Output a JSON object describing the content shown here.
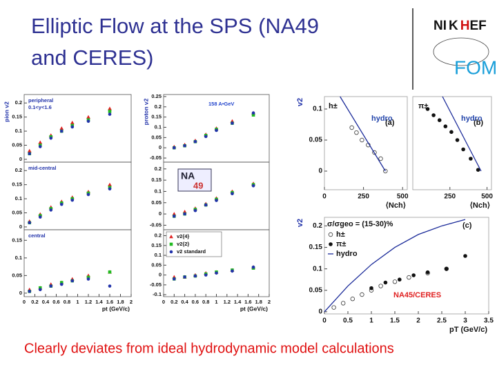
{
  "slide_title": [
    "Elliptic Flow at the SPS (NA49",
    "and CERES)"
  ],
  "footer": "Clearly deviates from ideal hydrodynamic model calculations",
  "logo": {
    "nikhef": [
      "NI",
      "K",
      "H",
      "EF"
    ],
    "fom": "FOM"
  },
  "na49_logo": [
    "NA",
    "49"
  ],
  "chart_data": [
    {
      "type": "scatter",
      "ylabel": "pion v2",
      "annotations": [
        "peripheral",
        "0.1<y<1.6"
      ],
      "xlim": [
        0,
        2
      ],
      "ylim": [
        -0.01,
        0.23
      ],
      "yticks": [
        0,
        0.05,
        0.1,
        0.15,
        0.2
      ],
      "x": [
        0.1,
        0.3,
        0.5,
        0.7,
        0.9,
        1.2,
        1.6
      ],
      "series": [
        {
          "color": "#e02020",
          "marker": "triangle",
          "values": [
            0.03,
            0.06,
            0.085,
            0.11,
            0.13,
            0.15,
            0.18
          ]
        },
        {
          "color": "#22bb22",
          "marker": "square",
          "values": [
            0.02,
            0.05,
            0.08,
            0.1,
            0.12,
            0.14,
            0.17
          ]
        },
        {
          "color": "#2233aa",
          "marker": "circle",
          "values": [
            0.02,
            0.045,
            0.075,
            0.1,
            0.115,
            0.135,
            0.16
          ]
        }
      ]
    },
    {
      "type": "scatter",
      "ylabel": "proton v2",
      "annotations": [
        "158 A•GeV"
      ],
      "xlim": [
        0,
        2
      ],
      "ylim": [
        -0.07,
        0.26
      ],
      "yticks": [
        -0.05,
        0,
        0.05,
        0.1,
        0.15,
        0.2,
        0.25
      ],
      "x": [
        0.2,
        0.4,
        0.6,
        0.8,
        1.0,
        1.3,
        1.7
      ],
      "series": [
        {
          "color": "#e02020",
          "marker": "triangle",
          "values": [
            0.005,
            0.015,
            0.035,
            0.065,
            0.095,
            0.13,
            0.17
          ]
        },
        {
          "color": "#22bb22",
          "marker": "square",
          "values": [
            0,
            0.01,
            0.03,
            0.06,
            0.09,
            0.12,
            0.16
          ]
        },
        {
          "color": "#2233aa",
          "marker": "circle",
          "values": [
            0,
            0.01,
            0.03,
            0.055,
            0.085,
            0.12,
            0.17
          ]
        }
      ]
    },
    {
      "type": "scatter",
      "annotations": [
        "mid-central"
      ],
      "xlim": [
        0,
        2
      ],
      "ylim": [
        -0.01,
        0.23
      ],
      "yticks": [
        0,
        0.05,
        0.1,
        0.15,
        0.2
      ],
      "x": [
        0.1,
        0.3,
        0.5,
        0.7,
        0.9,
        1.2,
        1.6
      ],
      "series": [
        {
          "color": "#e02020",
          "marker": "triangle",
          "values": [
            0.02,
            0.045,
            0.07,
            0.09,
            0.105,
            0.125,
            0.15
          ]
        },
        {
          "color": "#22bb22",
          "marker": "square",
          "values": [
            0.015,
            0.04,
            0.065,
            0.085,
            0.1,
            0.12,
            0.14
          ]
        },
        {
          "color": "#2233aa",
          "marker": "circle",
          "values": [
            0.015,
            0.035,
            0.06,
            0.08,
            0.095,
            0.115,
            0.135
          ]
        }
      ]
    },
    {
      "type": "scatter",
      "xlim": [
        0,
        2
      ],
      "ylim": [
        -0.07,
        0.23
      ],
      "yticks": [
        -0.05,
        0,
        0.05,
        0.1,
        0.15,
        0.2
      ],
      "x": [
        0.2,
        0.4,
        0.6,
        0.8,
        1.0,
        1.3,
        1.7
      ],
      "series": [
        {
          "color": "#e02020",
          "marker": "triangle",
          "values": [
            0,
            0.01,
            0.025,
            0.045,
            0.07,
            0.1,
            0.135
          ]
        },
        {
          "color": "#22bb22",
          "marker": "square",
          "values": [
            -0.01,
            0,
            0.02,
            0.04,
            0.065,
            0.095,
            0.13
          ]
        },
        {
          "color": "#2233aa",
          "marker": "circle",
          "values": [
            -0.01,
            0,
            0.015,
            0.04,
            0.06,
            0.09,
            0.125
          ]
        }
      ]
    },
    {
      "type": "scatter",
      "annotations": [
        "central"
      ],
      "xlabel": "pt (GeV/c)",
      "xlim": [
        0,
        2
      ],
      "ylim": [
        -0.01,
        0.18
      ],
      "yticks": [
        0,
        0.05,
        0.1,
        0.15
      ],
      "xticks": [
        0,
        0.2,
        0.4,
        0.6,
        0.8,
        1,
        1.2,
        1.4,
        1.6,
        1.8,
        2
      ],
      "x": [
        0.1,
        0.3,
        0.5,
        0.7,
        0.9,
        1.2,
        1.6
      ],
      "series": [
        {
          "color": "#e02020",
          "marker": "triangle",
          "values": [
            0.01,
            0.015,
            0.025,
            0.03,
            0.04,
            0.05,
            0.06
          ]
        },
        {
          "color": "#22bb22",
          "marker": "square",
          "values": [
            0.005,
            0.015,
            0.02,
            0.03,
            0.035,
            0.045,
            0.06
          ]
        },
        {
          "color": "#2233aa",
          "marker": "circle",
          "values": [
            0.005,
            0.01,
            0.02,
            0.025,
            0.035,
            0.04,
            0.02
          ]
        }
      ]
    },
    {
      "type": "scatter",
      "xlabel": "pt (GeV/c)",
      "legend": "top-left",
      "xlim": [
        0,
        2
      ],
      "ylim": [
        -0.11,
        0.23
      ],
      "yticks": [
        -0.1,
        -0.05,
        0,
        0.05,
        0.1,
        0.15,
        0.2
      ],
      "xticks": [
        0,
        0.2,
        0.4,
        0.6,
        0.8,
        1,
        1.2,
        1.4,
        1.6,
        1.8,
        2
      ],
      "x": [
        0.2,
        0.4,
        0.6,
        0.8,
        1.0,
        1.3,
        1.7
      ],
      "series": [
        {
          "name": "v2{4}",
          "color": "#e02020",
          "marker": "triangle",
          "values": [
            -0.01,
            -0.01,
            0,
            0.01,
            0.015,
            0.025,
            0.04
          ]
        },
        {
          "name": "v2{2}",
          "color": "#22bb22",
          "marker": "square",
          "values": [
            -0.02,
            -0.01,
            -0.005,
            0.005,
            0.015,
            0.025,
            0.035
          ]
        },
        {
          "name": "v2 standard",
          "color": "#2233aa",
          "marker": "circle",
          "values": [
            -0.02,
            -0.01,
            -0.005,
            0,
            0.01,
            0.02,
            0.04
          ]
        }
      ]
    },
    {
      "type": "scatter",
      "ylabel": "v2",
      "xlabel": "⟨Nch⟩",
      "annotations": [
        "h±",
        "(a)",
        "hydro"
      ],
      "xlim": [
        0,
        530
      ],
      "ylim": [
        -0.03,
        0.12
      ],
      "yticks": [
        0,
        0.05,
        0.1
      ],
      "xticks": [
        0,
        250,
        500
      ],
      "series": [
        {
          "color": "#333333",
          "marker": "open-circle",
          "x": [
            175,
            205,
            240,
            280,
            320,
            360,
            390
          ],
          "values": [
            0.07,
            0.062,
            0.05,
            0.042,
            0.03,
            0.02,
            0
          ]
        },
        {
          "color": "#1a2a99",
          "marker": "line",
          "x": [
            100,
            390
          ],
          "values": [
            0.12,
            0
          ]
        }
      ]
    },
    {
      "type": "scatter",
      "xlabel": "⟨Nch⟩",
      "annotations": [
        "π±",
        "(b)",
        "hydro"
      ],
      "xlim": [
        0,
        530
      ],
      "ylim": [
        -0.03,
        0.12
      ],
      "xticks": [
        250,
        500
      ],
      "series": [
        {
          "color": "#111111",
          "marker": "circle",
          "x": [
            100,
            140,
            180,
            220,
            260,
            300,
            340,
            390,
            440
          ],
          "values": [
            0.1,
            0.09,
            0.082,
            0.072,
            0.063,
            0.05,
            0.035,
            0.02,
            0.002
          ]
        },
        {
          "color": "#1a2a99",
          "marker": "line",
          "x": [
            200,
            460
          ],
          "values": [
            0.12,
            0
          ]
        }
      ]
    },
    {
      "type": "scatter",
      "ylabel": "v2",
      "xlabel": "pT (GeV/c)",
      "legend": "top-left",
      "legend_title": "σ/σgeo = (15-30)%",
      "annotations": [
        "(c)",
        "NA45/CERES"
      ],
      "xlim": [
        0,
        3.5
      ],
      "ylim": [
        -0.005,
        0.22
      ],
      "yticks": [
        0,
        0.05,
        0.1,
        0.15,
        0.2
      ],
      "xticks": [
        0,
        0.5,
        1,
        1.5,
        2,
        2.5,
        3,
        3.5
      ],
      "series": [
        {
          "name": "h±",
          "color": "#333333",
          "marker": "open-circle",
          "x": [
            0.2,
            0.4,
            0.6,
            0.8,
            1.0,
            1.2,
            1.5,
            1.8,
            2.2,
            2.6
          ],
          "values": [
            0.01,
            0.02,
            0.03,
            0.04,
            0.05,
            0.06,
            0.07,
            0.08,
            0.09,
            0.1
          ]
        },
        {
          "name": "π±",
          "color": "#111111",
          "marker": "circle",
          "x": [
            1.0,
            1.3,
            1.6,
            1.9,
            2.2,
            2.6,
            3.0
          ],
          "values": [
            0.055,
            0.068,
            0.075,
            0.085,
            0.092,
            0.1,
            0.13
          ]
        },
        {
          "name": "hydro",
          "color": "#1a2a99",
          "marker": "line",
          "x": [
            0,
            0.5,
            1,
            1.5,
            2,
            2.5,
            3
          ],
          "values": [
            0,
            0.06,
            0.11,
            0.15,
            0.18,
            0.2,
            0.215
          ]
        }
      ]
    }
  ]
}
